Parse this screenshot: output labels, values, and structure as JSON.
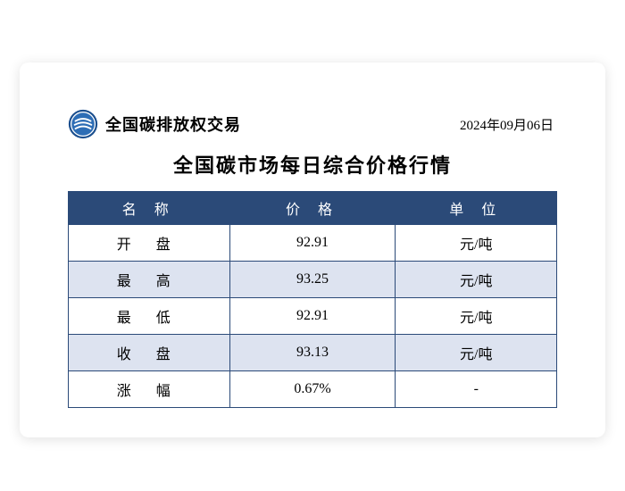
{
  "header": {
    "logo_text": "全国碳排放权交易",
    "date": "2024年09月06日",
    "title": "全国碳市场每日综合价格行情"
  },
  "table": {
    "header_bg": "#2b4a78",
    "header_fg": "#ffffff",
    "border_color": "#2b4a78",
    "alt_row_bg": "#dde3f0",
    "columns": [
      {
        "key": "name",
        "label": "名 称"
      },
      {
        "key": "price",
        "label": "价 格"
      },
      {
        "key": "unit",
        "label": "单 位"
      }
    ],
    "rows": [
      {
        "name": "开 盘",
        "price": "92.91",
        "unit": "元/吨",
        "alt": false
      },
      {
        "name": "最 高",
        "price": "93.25",
        "unit": "元/吨",
        "alt": true
      },
      {
        "name": "最 低",
        "price": "92.91",
        "unit": "元/吨",
        "alt": false
      },
      {
        "name": "收 盘",
        "price": "93.13",
        "unit": "元/吨",
        "alt": true
      },
      {
        "name": "涨 幅",
        "price": "0.67%",
        "unit": "-",
        "alt": false
      }
    ]
  },
  "logo": {
    "outer_ring": "#1a4e8e",
    "inner_bg": "#2d6db5",
    "stroke": "#ffffff"
  }
}
